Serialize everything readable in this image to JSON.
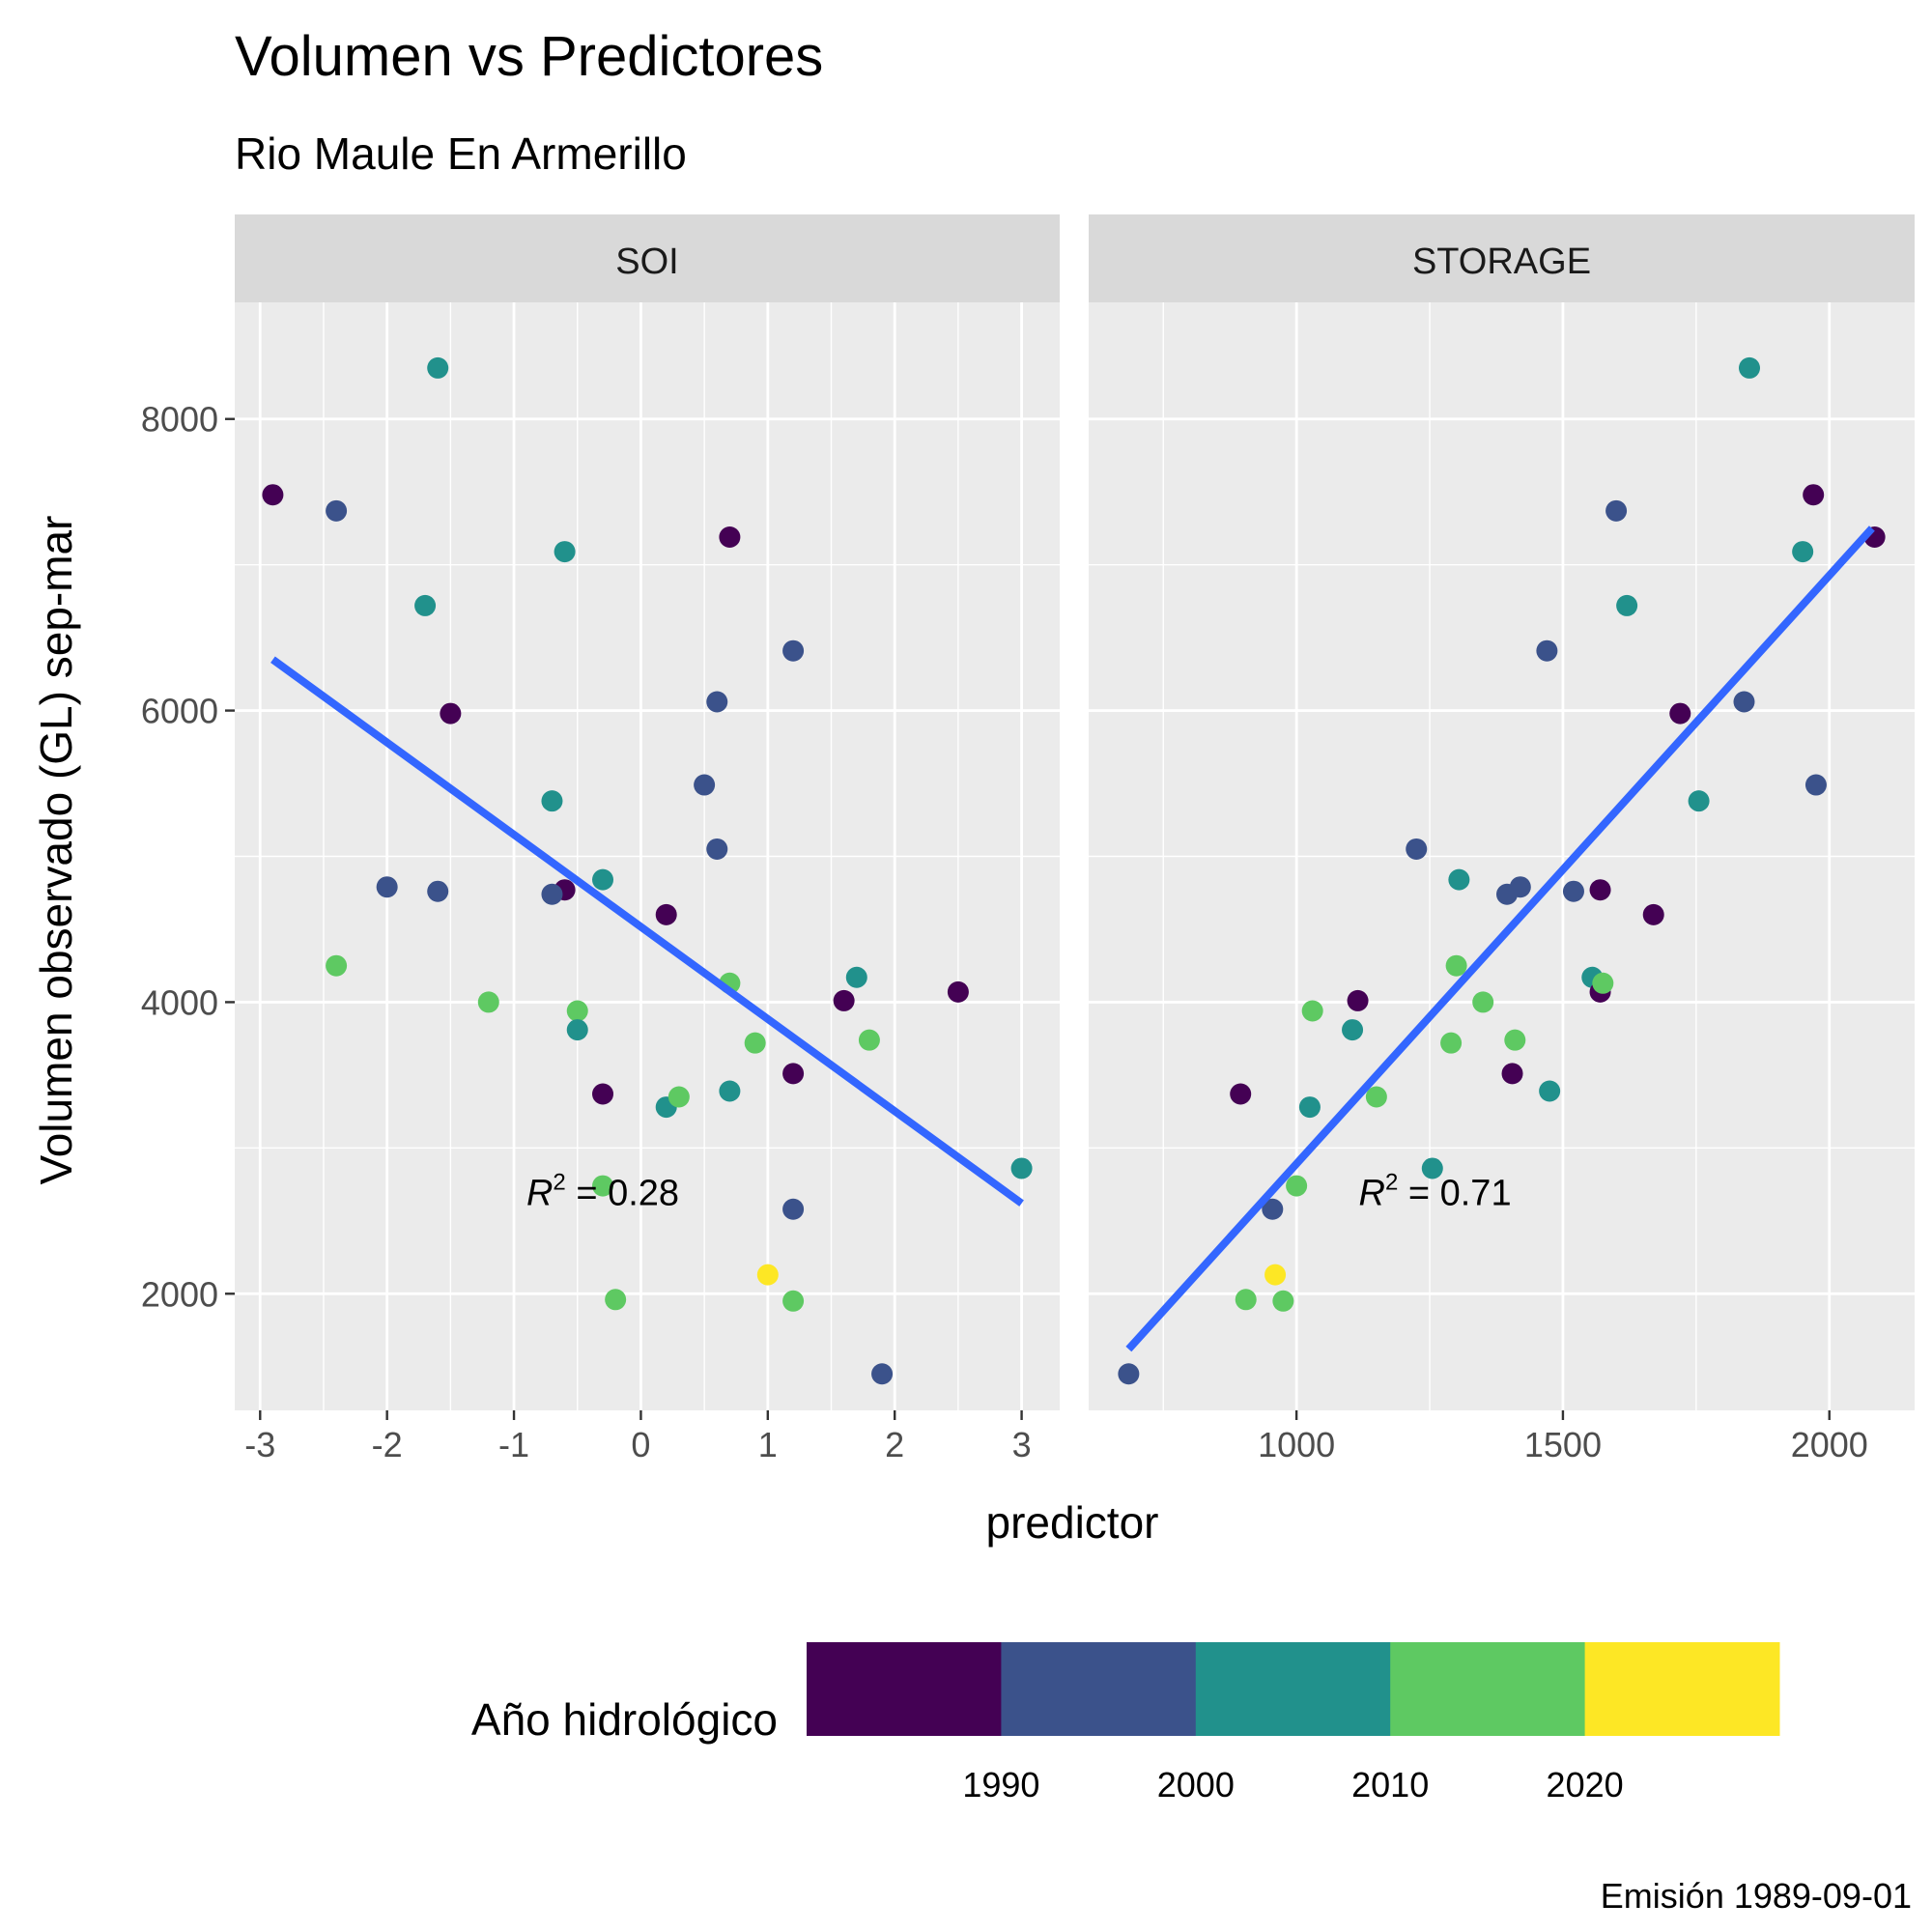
{
  "title": "Volumen vs Predictores",
  "subtitle": "Rio Maule En Armerillo",
  "caption": "Emisión 1989-09-01",
  "chart_data": {
    "type": "scatter",
    "xlabel": "predictor",
    "ylabel": "Volumen observado (GL) sep-mar",
    "ylim": [
      1200,
      8800
    ],
    "yticks": [
      2000,
      4000,
      6000,
      8000
    ],
    "ytick_labels": [
      "2000",
      "4000",
      "6000",
      "8000"
    ],
    "grid": true,
    "legend": {
      "title": "Año hidrológico",
      "position": "bottom",
      "colors": [
        "#440154",
        "#3b528b",
        "#21918c",
        "#5ec962",
        "#fde725"
      ],
      "breaks": [
        "1990",
        "2000",
        "2010",
        "2020"
      ]
    },
    "fit_line_color": "#3366ff",
    "panels": [
      {
        "name": "SOI",
        "xlim": [
          -3.2,
          3.3
        ],
        "xticks": [
          -3,
          -2,
          -1,
          0,
          1,
          2,
          3
        ],
        "xtick_labels": [
          "-3",
          "-2",
          "-1",
          "0",
          "1",
          "2",
          "3"
        ],
        "r2_label": "0.28",
        "r2_pos": [
          -0.3,
          2700
        ],
        "fit": {
          "x": [
            -2.9,
            3.0
          ],
          "y": [
            6350,
            2620
          ]
        },
        "points": [
          {
            "x": -2.9,
            "y": 7480,
            "color": "#440154"
          },
          {
            "x": -2.4,
            "y": 7370,
            "color": "#3b528b"
          },
          {
            "x": -2.4,
            "y": 4250,
            "color": "#5ec962"
          },
          {
            "x": -2.0,
            "y": 4790,
            "color": "#3b528b"
          },
          {
            "x": -1.7,
            "y": 6720,
            "color": "#21918c"
          },
          {
            "x": -1.6,
            "y": 8350,
            "color": "#21918c"
          },
          {
            "x": -1.6,
            "y": 4760,
            "color": "#3b528b"
          },
          {
            "x": -1.5,
            "y": 5980,
            "color": "#440154"
          },
          {
            "x": -1.2,
            "y": 4000,
            "color": "#5ec962"
          },
          {
            "x": -0.7,
            "y": 5380,
            "color": "#21918c"
          },
          {
            "x": -0.6,
            "y": 4770,
            "color": "#440154"
          },
          {
            "x": -0.7,
            "y": 4740,
            "color": "#3b528b"
          },
          {
            "x": -0.6,
            "y": 7090,
            "color": "#21918c"
          },
          {
            "x": -0.5,
            "y": 3940,
            "color": "#5ec962"
          },
          {
            "x": -0.5,
            "y": 3810,
            "color": "#21918c"
          },
          {
            "x": -0.3,
            "y": 4840,
            "color": "#21918c"
          },
          {
            "x": -0.3,
            "y": 3370,
            "color": "#440154"
          },
          {
            "x": -0.3,
            "y": 2740,
            "color": "#5ec962"
          },
          {
            "x": -0.2,
            "y": 1960,
            "color": "#5ec962"
          },
          {
            "x": 0.2,
            "y": 4600,
            "color": "#440154"
          },
          {
            "x": 0.2,
            "y": 3280,
            "color": "#21918c"
          },
          {
            "x": 0.3,
            "y": 3350,
            "color": "#5ec962"
          },
          {
            "x": 0.5,
            "y": 5490,
            "color": "#3b528b"
          },
          {
            "x": 0.6,
            "y": 6060,
            "color": "#3b528b"
          },
          {
            "x": 0.6,
            "y": 5050,
            "color": "#3b528b"
          },
          {
            "x": 0.7,
            "y": 7190,
            "color": "#440154"
          },
          {
            "x": 0.7,
            "y": 4130,
            "color": "#5ec962"
          },
          {
            "x": 0.7,
            "y": 3390,
            "color": "#21918c"
          },
          {
            "x": 0.9,
            "y": 3720,
            "color": "#5ec962"
          },
          {
            "x": 1.0,
            "y": 2130,
            "color": "#fde725"
          },
          {
            "x": 1.2,
            "y": 6410,
            "color": "#3b528b"
          },
          {
            "x": 1.2,
            "y": 3510,
            "color": "#440154"
          },
          {
            "x": 1.2,
            "y": 2580,
            "color": "#3b528b"
          },
          {
            "x": 1.2,
            "y": 1950,
            "color": "#5ec962"
          },
          {
            "x": 1.6,
            "y": 4010,
            "color": "#440154"
          },
          {
            "x": 1.7,
            "y": 4170,
            "color": "#21918c"
          },
          {
            "x": 1.8,
            "y": 3740,
            "color": "#5ec962"
          },
          {
            "x": 1.9,
            "y": 1450,
            "color": "#3b528b"
          },
          {
            "x": 2.5,
            "y": 4070,
            "color": "#440154"
          },
          {
            "x": 3.0,
            "y": 2860,
            "color": "#21918c"
          }
        ]
      },
      {
        "name": "STORAGE",
        "xlim": [
          610,
          2160
        ],
        "xticks": [
          1000,
          1500,
          2000
        ],
        "xtick_labels": [
          "1000",
          "1500",
          "2000"
        ],
        "r2_label": "0.71",
        "r2_pos": [
          1260,
          2700
        ],
        "fit": {
          "x": [
            685,
            2080
          ],
          "y": [
            1620,
            7250
          ]
        },
        "points": [
          {
            "x": 685,
            "y": 1450,
            "color": "#3b528b"
          },
          {
            "x": 895,
            "y": 3370,
            "color": "#440154"
          },
          {
            "x": 905,
            "y": 1960,
            "color": "#5ec962"
          },
          {
            "x": 955,
            "y": 2580,
            "color": "#3b528b"
          },
          {
            "x": 960,
            "y": 2130,
            "color": "#fde725"
          },
          {
            "x": 975,
            "y": 1950,
            "color": "#5ec962"
          },
          {
            "x": 1000,
            "y": 2740,
            "color": "#5ec962"
          },
          {
            "x": 1025,
            "y": 3280,
            "color": "#21918c"
          },
          {
            "x": 1030,
            "y": 3940,
            "color": "#5ec962"
          },
          {
            "x": 1105,
            "y": 3810,
            "color": "#21918c"
          },
          {
            "x": 1115,
            "y": 4010,
            "color": "#440154"
          },
          {
            "x": 1150,
            "y": 3350,
            "color": "#5ec962"
          },
          {
            "x": 1225,
            "y": 5050,
            "color": "#3b528b"
          },
          {
            "x": 1255,
            "y": 2860,
            "color": "#21918c"
          },
          {
            "x": 1290,
            "y": 3720,
            "color": "#5ec962"
          },
          {
            "x": 1300,
            "y": 4250,
            "color": "#5ec962"
          },
          {
            "x": 1305,
            "y": 4840,
            "color": "#21918c"
          },
          {
            "x": 1350,
            "y": 4000,
            "color": "#5ec962"
          },
          {
            "x": 1395,
            "y": 4740,
            "color": "#3b528b"
          },
          {
            "x": 1405,
            "y": 3510,
            "color": "#440154"
          },
          {
            "x": 1410,
            "y": 3740,
            "color": "#5ec962"
          },
          {
            "x": 1420,
            "y": 4790,
            "color": "#3b528b"
          },
          {
            "x": 1470,
            "y": 6410,
            "color": "#3b528b"
          },
          {
            "x": 1475,
            "y": 3390,
            "color": "#21918c"
          },
          {
            "x": 1520,
            "y": 4760,
            "color": "#3b528b"
          },
          {
            "x": 1555,
            "y": 4170,
            "color": "#21918c"
          },
          {
            "x": 1570,
            "y": 4070,
            "color": "#440154"
          },
          {
            "x": 1570,
            "y": 4770,
            "color": "#440154"
          },
          {
            "x": 1575,
            "y": 4130,
            "color": "#5ec962"
          },
          {
            "x": 1600,
            "y": 7370,
            "color": "#3b528b"
          },
          {
            "x": 1620,
            "y": 6720,
            "color": "#21918c"
          },
          {
            "x": 1670,
            "y": 4600,
            "color": "#440154"
          },
          {
            "x": 1720,
            "y": 5980,
            "color": "#440154"
          },
          {
            "x": 1755,
            "y": 5380,
            "color": "#21918c"
          },
          {
            "x": 1840,
            "y": 6060,
            "color": "#3b528b"
          },
          {
            "x": 1850,
            "y": 8350,
            "color": "#21918c"
          },
          {
            "x": 1950,
            "y": 7090,
            "color": "#21918c"
          },
          {
            "x": 1970,
            "y": 7480,
            "color": "#440154"
          },
          {
            "x": 1975,
            "y": 5490,
            "color": "#3b528b"
          },
          {
            "x": 2085,
            "y": 7190,
            "color": "#440154"
          }
        ]
      }
    ]
  }
}
